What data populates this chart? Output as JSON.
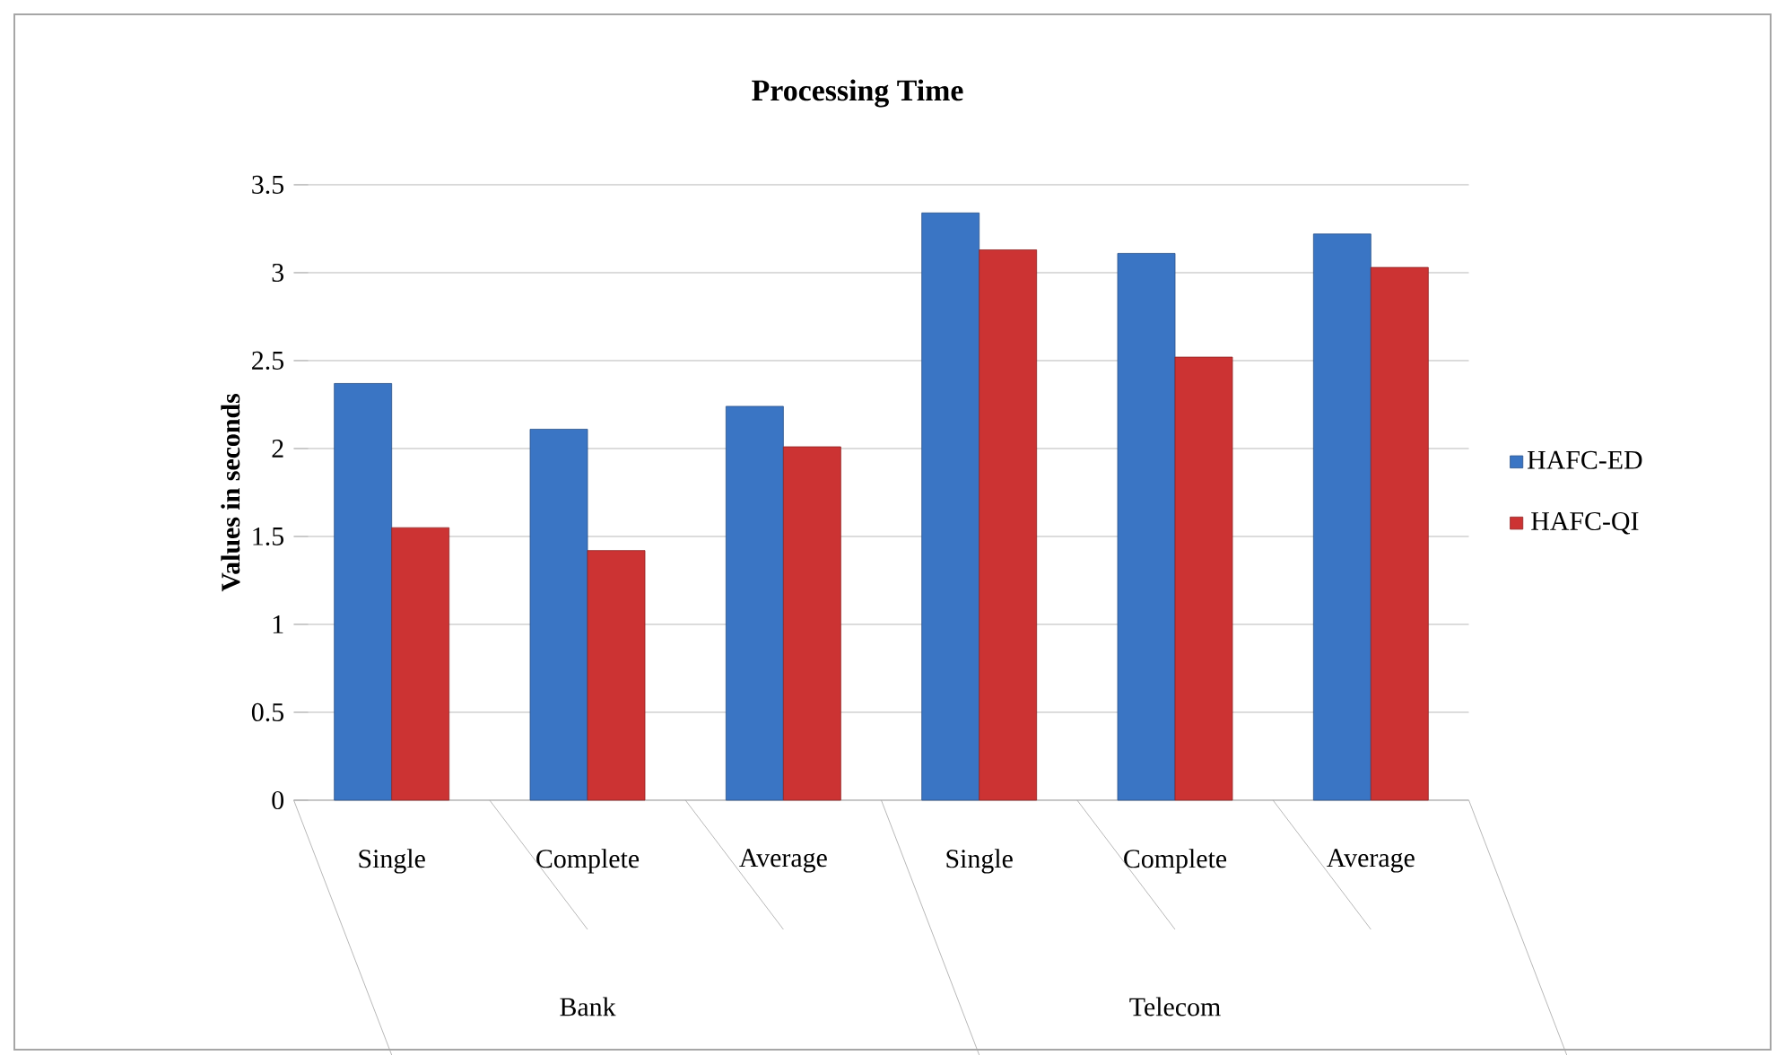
{
  "chart_data": {
    "type": "bar",
    "title": "Processing Time",
    "ylabel": "Values in seconds",
    "categories": [
      "Single",
      "Complete",
      "Average",
      "Single",
      "Complete",
      "Average"
    ],
    "series": [
      {
        "name": "HAFC-ED",
        "color": "#3a75c4",
        "values": [
          2.37,
          2.11,
          2.24,
          3.34,
          3.11,
          3.22
        ]
      },
      {
        "name": "HAFC-QI",
        "color": "#cc3333",
        "values": [
          1.55,
          1.42,
          2.01,
          3.13,
          2.52,
          3.03
        ]
      }
    ],
    "ylim": [
      0,
      3.5
    ],
    "yticks": [
      0,
      0.5,
      1,
      1.5,
      2,
      2.5,
      3,
      3.5
    ],
    "grid": "y",
    "legend": "right",
    "annotations": [
      "Bank",
      "Telecom"
    ]
  }
}
